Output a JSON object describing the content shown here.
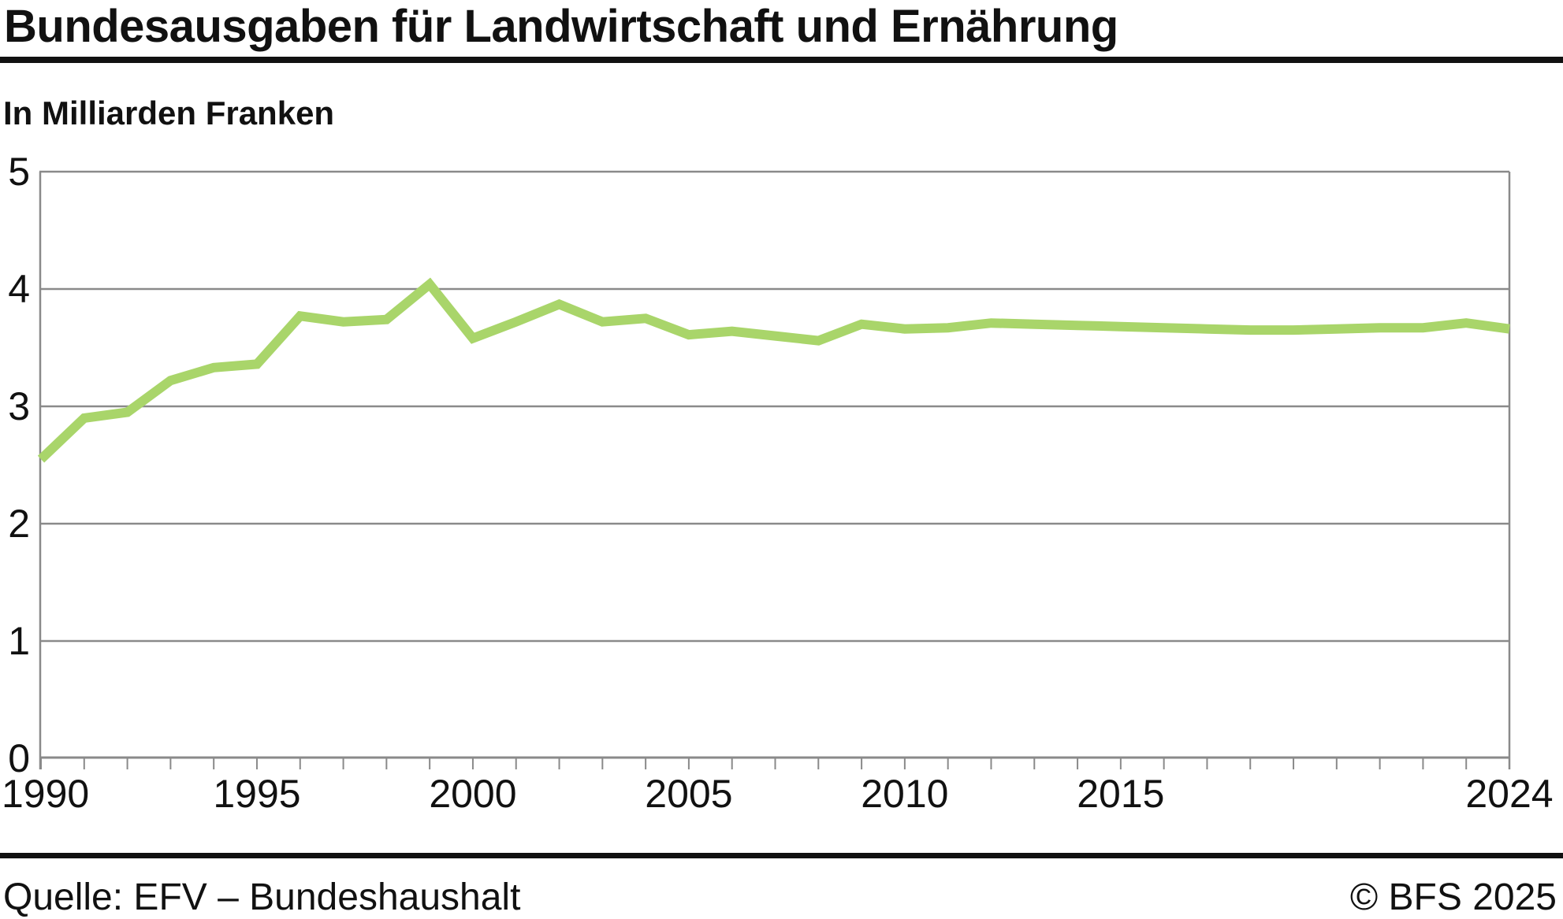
{
  "header": {
    "title": "Bundesausgaben für Landwirtschaft und Ernährung",
    "subtitle": "In Milliarden Franken"
  },
  "footer": {
    "source": "Quelle: EFV – Bundeshaushalt",
    "copyright": "© BFS 2025"
  },
  "colors": {
    "line": "#a9d56a",
    "grid": "#8a8a8a",
    "axis": "#8a8a8a",
    "text": "#111111",
    "rule": "#111111"
  },
  "chart_data": {
    "type": "line",
    "title": "Bundesausgaben für Landwirtschaft und Ernährung",
    "ylabel": "In Milliarden Franken",
    "unit": "Milliarden Franken",
    "grid": "horizontal",
    "legend_position": "none",
    "xlim": [
      1990,
      2024
    ],
    "ylim": [
      0,
      5
    ],
    "yticks": [
      0,
      1,
      2,
      3,
      4,
      5
    ],
    "xticks_minor_every": 1,
    "xtick_labels": [
      1990,
      1995,
      2000,
      2005,
      2010,
      2015,
      2024
    ],
    "x": [
      1990,
      1991,
      1992,
      1993,
      1994,
      1995,
      1996,
      1997,
      1998,
      1999,
      2000,
      2001,
      2002,
      2003,
      2004,
      2005,
      2006,
      2007,
      2008,
      2009,
      2010,
      2011,
      2012,
      2013,
      2014,
      2015,
      2016,
      2017,
      2018,
      2019,
      2020,
      2021,
      2022,
      2023,
      2024
    ],
    "series": [
      {
        "name": "Bundesausgaben für Landwirtschaft und Ernährung",
        "color": "#a9d56a",
        "values": [
          2.55,
          2.9,
          2.95,
          3.22,
          3.33,
          3.36,
          3.77,
          3.72,
          3.74,
          4.04,
          3.58,
          3.72,
          3.87,
          3.72,
          3.75,
          3.61,
          3.64,
          3.6,
          3.56,
          3.7,
          3.66,
          3.67,
          3.71,
          3.7,
          3.69,
          3.68,
          3.67,
          3.66,
          3.65,
          3.65,
          3.66,
          3.67,
          3.67,
          3.71,
          3.66
        ]
      }
    ]
  }
}
